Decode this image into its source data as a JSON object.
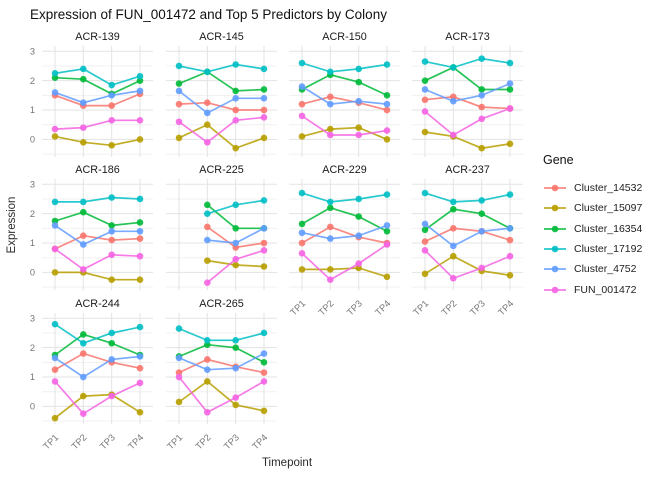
{
  "title": "Expression of FUN_001472 and Top 5 Predictors by Colony",
  "axes": {
    "x_label": "Timepoint",
    "y_label": "Expression",
    "x_ticks": [
      "TP1",
      "TP2",
      "TP3",
      "TP4"
    ],
    "y_ticks": [
      "0",
      "1",
      "2",
      "3"
    ]
  },
  "legend": {
    "title": "Gene",
    "position": "right",
    "items": [
      {
        "label": "Cluster_14532",
        "color": "#F8766D"
      },
      {
        "label": "Cluster_15097",
        "color": "#B79F00"
      },
      {
        "label": "Cluster_16354",
        "color": "#00BA38"
      },
      {
        "label": "Cluster_17192",
        "color": "#00BFC4"
      },
      {
        "label": "Cluster_4752",
        "color": "#619CFF"
      },
      {
        "label": "FUN_001472",
        "color": "#F564E3"
      }
    ]
  },
  "chart_data": {
    "type": "line",
    "x": [
      "TP1",
      "TP2",
      "TP3",
      "TP4"
    ],
    "ylim": [
      -0.6,
      3.18
    ],
    "y_major_gridlines": [
      0,
      1,
      2,
      3
    ],
    "y_minor_gridlines": [
      -0.5,
      0.5,
      1.5,
      2.5
    ],
    "grid": true,
    "legend_position": "right",
    "title": "Expression of FUN_001472 and Top 5 Predictors by Colony",
    "xlabel": "Timepoint",
    "ylabel": "Expression",
    "series_order": [
      "Cluster_14532",
      "Cluster_15097",
      "Cluster_16354",
      "Cluster_17192",
      "Cluster_4752",
      "FUN_001472"
    ],
    "colors": {
      "Cluster_14532": "#F8766D",
      "Cluster_15097": "#B79F00",
      "Cluster_16354": "#00BA38",
      "Cluster_17192": "#00BFC4",
      "Cluster_4752": "#619CFF",
      "FUN_001472": "#F564E3"
    },
    "facets": [
      {
        "name": "ACR-139",
        "series": {
          "Cluster_14532": [
            1.5,
            1.15,
            1.15,
            1.55
          ],
          "Cluster_15097": [
            0.1,
            -0.1,
            -0.2,
            0.0
          ],
          "Cluster_16354": [
            2.1,
            2.05,
            1.55,
            2.0
          ],
          "Cluster_17192": [
            2.25,
            2.4,
            1.85,
            2.15
          ],
          "Cluster_4752": [
            1.6,
            1.25,
            1.5,
            1.65
          ],
          "FUN_001472": [
            0.35,
            0.4,
            0.65,
            0.65
          ]
        }
      },
      {
        "name": "ACR-145",
        "series": {
          "Cluster_14532": [
            1.2,
            1.25,
            1.0,
            1.0
          ],
          "Cluster_15097": [
            0.05,
            0.5,
            -0.3,
            0.05
          ],
          "Cluster_16354": [
            1.9,
            2.3,
            1.65,
            1.7
          ],
          "Cluster_17192": [
            2.5,
            2.3,
            2.55,
            2.4
          ],
          "Cluster_4752": [
            1.65,
            0.9,
            1.4,
            1.4
          ],
          "FUN_001472": [
            0.6,
            -0.1,
            0.65,
            0.75
          ]
        }
      },
      {
        "name": "ACR-150",
        "series": {
          "Cluster_14532": [
            1.2,
            1.45,
            1.25,
            1.0
          ],
          "Cluster_15097": [
            0.1,
            0.35,
            0.4,
            0.0
          ],
          "Cluster_16354": [
            1.7,
            2.2,
            1.95,
            1.5
          ],
          "Cluster_17192": [
            2.6,
            2.3,
            2.4,
            2.55
          ],
          "Cluster_4752": [
            1.8,
            1.2,
            1.3,
            1.2
          ],
          "FUN_001472": [
            0.8,
            0.15,
            0.15,
            0.3
          ]
        }
      },
      {
        "name": "ACR-173",
        "series": {
          "Cluster_14532": [
            1.35,
            1.45,
            1.1,
            1.05
          ],
          "Cluster_15097": [
            0.25,
            0.1,
            -0.3,
            -0.15
          ],
          "Cluster_16354": [
            2.0,
            2.45,
            1.7,
            1.7
          ],
          "Cluster_17192": [
            2.65,
            2.45,
            2.75,
            2.6
          ],
          "Cluster_4752": [
            1.7,
            1.3,
            1.5,
            1.9
          ],
          "FUN_001472": [
            0.95,
            0.15,
            0.7,
            1.05
          ]
        }
      },
      {
        "name": "ACR-186",
        "series": {
          "Cluster_14532": [
            0.8,
            1.25,
            1.1,
            1.15
          ],
          "Cluster_15097": [
            0.0,
            0.0,
            -0.25,
            -0.25
          ],
          "Cluster_16354": [
            1.75,
            2.05,
            1.6,
            1.7
          ],
          "Cluster_17192": [
            2.4,
            2.4,
            2.55,
            2.5
          ],
          "Cluster_4752": [
            1.6,
            0.95,
            1.4,
            1.4
          ],
          "FUN_001472": [
            0.8,
            0.1,
            0.6,
            0.55
          ]
        }
      },
      {
        "name": "ACR-225",
        "series": {
          "Cluster_14532": [
            null,
            1.55,
            0.85,
            1.0
          ],
          "Cluster_15097": [
            null,
            0.4,
            0.25,
            0.2
          ],
          "Cluster_16354": [
            null,
            2.3,
            1.5,
            1.5
          ],
          "Cluster_17192": [
            null,
            2.0,
            2.3,
            2.45
          ],
          "Cluster_4752": [
            null,
            1.1,
            1.0,
            1.5
          ],
          "FUN_001472": [
            null,
            -0.35,
            0.45,
            0.75
          ]
        }
      },
      {
        "name": "ACR-229",
        "series": {
          "Cluster_14532": [
            1.0,
            1.55,
            1.2,
            1.0
          ],
          "Cluster_15097": [
            0.1,
            0.1,
            0.15,
            -0.15
          ],
          "Cluster_16354": [
            1.65,
            2.2,
            1.9,
            1.4
          ],
          "Cluster_17192": [
            2.7,
            2.4,
            2.5,
            2.65
          ],
          "Cluster_4752": [
            1.35,
            1.15,
            1.25,
            1.6
          ],
          "FUN_001472": [
            0.65,
            -0.25,
            0.3,
            0.95
          ]
        }
      },
      {
        "name": "ACR-237",
        "series": {
          "Cluster_14532": [
            1.05,
            1.5,
            1.4,
            1.1
          ],
          "Cluster_15097": [
            -0.05,
            0.55,
            0.05,
            -0.1
          ],
          "Cluster_16354": [
            1.45,
            2.15,
            2.0,
            1.5
          ],
          "Cluster_17192": [
            2.7,
            2.4,
            2.45,
            2.65
          ],
          "Cluster_4752": [
            1.65,
            0.9,
            1.4,
            1.5
          ],
          "FUN_001472": [
            0.75,
            -0.2,
            0.15,
            0.55
          ]
        }
      },
      {
        "name": "ACR-244",
        "series": {
          "Cluster_14532": [
            1.25,
            1.8,
            1.5,
            1.3
          ],
          "Cluster_15097": [
            -0.4,
            0.35,
            0.4,
            -0.2
          ],
          "Cluster_16354": [
            1.75,
            2.45,
            2.15,
            1.75
          ],
          "Cluster_17192": [
            2.8,
            2.15,
            2.5,
            2.7
          ],
          "Cluster_4752": [
            1.65,
            1.0,
            1.6,
            1.7
          ],
          "FUN_001472": [
            0.85,
            -0.25,
            0.35,
            0.8
          ]
        }
      },
      {
        "name": "ACR-265",
        "series": {
          "Cluster_14532": [
            1.15,
            1.6,
            1.35,
            1.15
          ],
          "Cluster_15097": [
            0.15,
            0.85,
            0.05,
            -0.15
          ],
          "Cluster_16354": [
            1.7,
            2.1,
            2.0,
            1.5
          ],
          "Cluster_17192": [
            2.65,
            2.25,
            2.25,
            2.5
          ],
          "Cluster_4752": [
            1.65,
            1.25,
            1.3,
            1.8
          ],
          "FUN_001472": [
            1.0,
            -0.2,
            0.3,
            0.85
          ]
        }
      }
    ]
  }
}
